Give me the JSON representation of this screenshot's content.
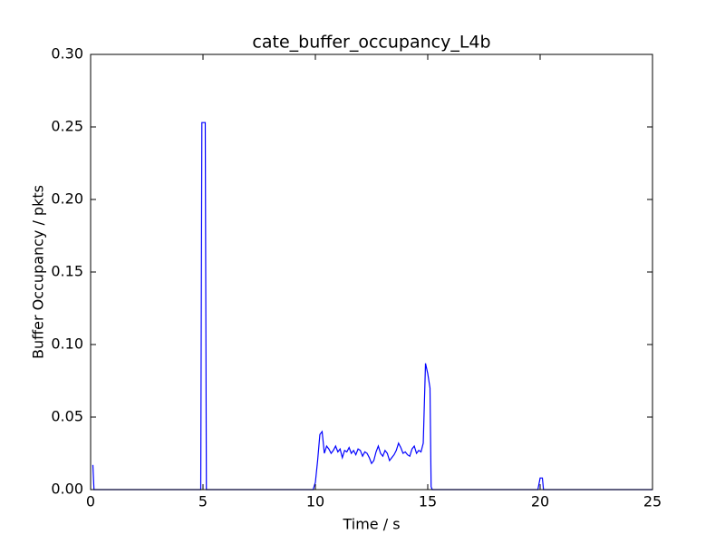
{
  "chart_data": {
    "type": "line",
    "title": "cate_buffer_occupancy_L4b",
    "xlabel": "Time / s",
    "ylabel": "Buffer Occupancy / pkts",
    "color": "#0000ff",
    "x": [
      0.1,
      0.15,
      4.9,
      4.95,
      5.1,
      5.15,
      9.9,
      10.0,
      10.1,
      10.2,
      10.3,
      10.4,
      10.5,
      10.6,
      10.7,
      10.8,
      10.9,
      11.0,
      11.1,
      11.2,
      11.3,
      11.4,
      11.5,
      11.6,
      11.7,
      11.8,
      11.9,
      12.0,
      12.1,
      12.2,
      12.3,
      12.4,
      12.5,
      12.6,
      12.7,
      12.8,
      12.9,
      13.0,
      13.1,
      13.2,
      13.3,
      13.4,
      13.5,
      13.6,
      13.7,
      13.8,
      13.9,
      14.0,
      14.1,
      14.2,
      14.3,
      14.4,
      14.5,
      14.6,
      14.7,
      14.8,
      14.9,
      15.0,
      15.1,
      15.15,
      15.2,
      19.9,
      20.0,
      20.1,
      20.15,
      25.0
    ],
    "values": [
      0.017,
      0,
      0,
      0.253,
      0.253,
      0,
      0,
      0.005,
      0.02,
      0.038,
      0.04,
      0.025,
      0.03,
      0.028,
      0.025,
      0.027,
      0.03,
      0.026,
      0.028,
      0.022,
      0.027,
      0.026,
      0.029,
      0.025,
      0.027,
      0.024,
      0.028,
      0.027,
      0.023,
      0.026,
      0.025,
      0.022,
      0.018,
      0.02,
      0.026,
      0.03,
      0.025,
      0.023,
      0.027,
      0.025,
      0.02,
      0.022,
      0.024,
      0.027,
      0.032,
      0.029,
      0.025,
      0.026,
      0.024,
      0.023,
      0.028,
      0.03,
      0.025,
      0.027,
      0.026,
      0.032,
      0.087,
      0.08,
      0.07,
      0.002,
      0,
      0,
      0.008,
      0.008,
      0,
      0
    ],
    "xlim": [
      0,
      25
    ],
    "ylim": [
      0,
      0.3
    ],
    "xticks": [
      0,
      5,
      10,
      15,
      20,
      25
    ],
    "yticks": [
      {
        "value": 0,
        "label": "0.00"
      },
      {
        "value": 0.05,
        "label": "0.05"
      },
      {
        "value": 0.1,
        "label": "0.10"
      },
      {
        "value": 0.15,
        "label": "0.15"
      },
      {
        "value": 0.2,
        "label": "0.20"
      },
      {
        "value": 0.25,
        "label": "0.25"
      },
      {
        "value": 0.3,
        "label": "0.30"
      }
    ]
  }
}
